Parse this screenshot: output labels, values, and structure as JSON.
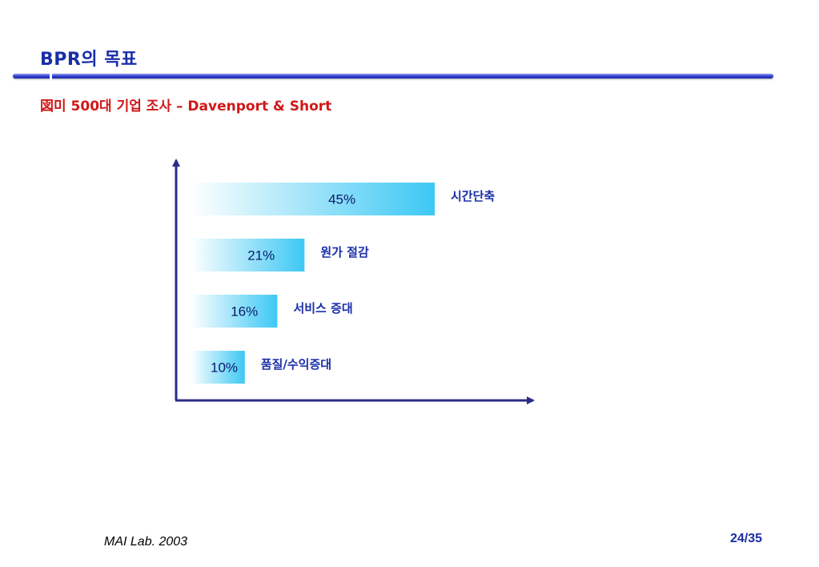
{
  "slide": {
    "title": "BPR의 목표",
    "subtitle": "미 500대 기업 조사 – Davenport & Short",
    "subtitle_bullet": "図",
    "footer_left": "MAI Lab. 2003",
    "page_number": "24/35"
  },
  "colors": {
    "title": "#1a2ea8",
    "subtitle": "#d01818",
    "bar_light": "#ffffff",
    "bar_dark": "#3cc8f4",
    "axis": "#2b2b8a"
  },
  "chart_data": {
    "type": "bar",
    "orientation": "horizontal",
    "categories": [
      "시간단축",
      "원가 절감",
      "서비스 증대",
      "품질/수익증대"
    ],
    "values": [
      45,
      21,
      16,
      10
    ],
    "value_labels": [
      "45%",
      "21%",
      "16%",
      "10%"
    ],
    "unit": "%",
    "xlim": [
      0,
      80
    ],
    "grid": false,
    "legend": "none"
  }
}
